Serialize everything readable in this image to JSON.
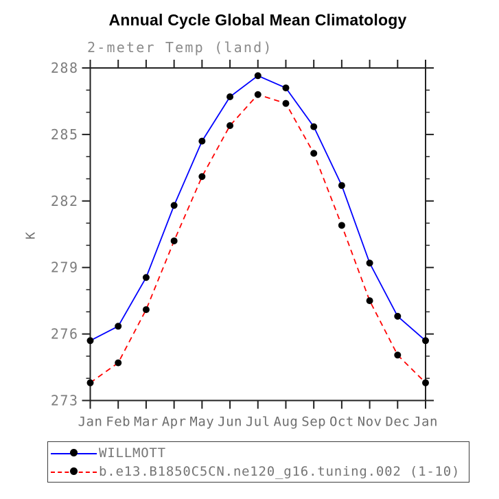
{
  "title": "Annual Cycle Global Mean Climatology",
  "chart_data": {
    "type": "line",
    "title": "Annual Cycle Global Mean Climatology",
    "subtitle": "2-meter Temp (land)",
    "xlabel": "",
    "ylabel": "K",
    "categories": [
      "Jan",
      "Feb",
      "Mar",
      "Apr",
      "May",
      "Jun",
      "Jul",
      "Aug",
      "Sep",
      "Oct",
      "Nov",
      "Dec",
      "Jan"
    ],
    "ylim": [
      273,
      288
    ],
    "yticks": [
      273,
      276,
      279,
      282,
      285,
      288
    ],
    "y_minor_step": 1,
    "grid": false,
    "legend_position": "bottom-left-box",
    "series": [
      {
        "name": "WILLMOTT",
        "color": "#0000ff",
        "line_style": "solid",
        "marker": "filled-circle",
        "marker_color": "#000000",
        "values": [
          275.7,
          276.35,
          278.55,
          281.8,
          284.7,
          286.7,
          287.65,
          287.1,
          285.35,
          282.7,
          279.2,
          276.8,
          275.7
        ]
      },
      {
        "name": "b.e13.B1850C5CN.ne120_g16.tuning.002 (1-10)",
        "color": "#ff0000",
        "line_style": "dashed",
        "marker": "filled-circle",
        "marker_color": "#000000",
        "values": [
          273.8,
          274.7,
          277.1,
          280.2,
          283.1,
          285.4,
          286.8,
          286.4,
          284.15,
          280.9,
          277.5,
          275.05,
          273.8
        ]
      }
    ],
    "axis_color": "#222222",
    "tick_label_color": "#7d7d7d"
  }
}
